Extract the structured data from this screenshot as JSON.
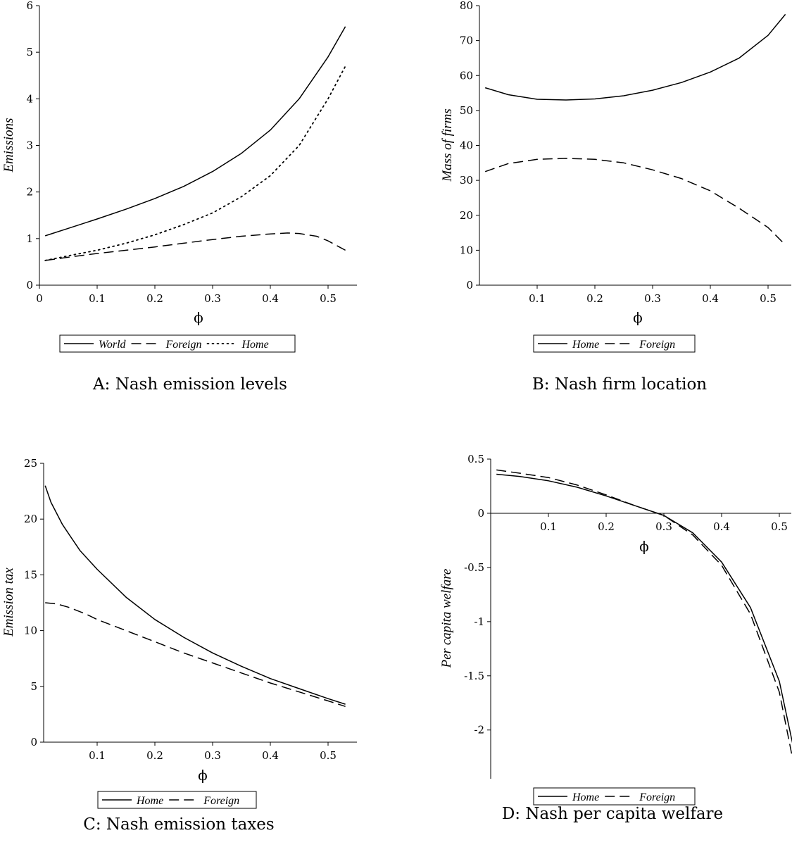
{
  "chart_data": [
    {
      "type": "line",
      "caption": "A: Nash emission levels",
      "xlabel": "ϕ",
      "ylabel": "Emissions",
      "xlim": [
        0,
        0.55
      ],
      "ylim": [
        0,
        6
      ],
      "xticks": [
        0,
        0.1,
        0.2,
        0.3,
        0.4,
        0.5
      ],
      "xtick_labels": [
        "0",
        "0.1",
        "0.2",
        "0.3",
        "0.4",
        "0.5"
      ],
      "yticks": [
        0,
        1,
        2,
        3,
        4,
        5,
        6
      ],
      "ytick_labels": [
        "0",
        "1",
        "2",
        "3",
        "4",
        "5",
        "6"
      ],
      "series": [
        {
          "name": "World",
          "style": "solid",
          "x": [
            0.01,
            0.05,
            0.1,
            0.15,
            0.2,
            0.25,
            0.3,
            0.35,
            0.4,
            0.45,
            0.5,
            0.53
          ],
          "y": [
            1.06,
            1.22,
            1.42,
            1.63,
            1.86,
            2.12,
            2.44,
            2.83,
            3.33,
            4.0,
            4.9,
            5.55
          ]
        },
        {
          "name": "Foreign",
          "style": "dashed",
          "x": [
            0.01,
            0.05,
            0.1,
            0.15,
            0.2,
            0.25,
            0.3,
            0.35,
            0.4,
            0.43,
            0.45,
            0.48,
            0.5,
            0.53
          ],
          "y": [
            0.53,
            0.6,
            0.68,
            0.75,
            0.82,
            0.9,
            0.98,
            1.05,
            1.1,
            1.12,
            1.11,
            1.05,
            0.95,
            0.75
          ]
        },
        {
          "name": "Home",
          "style": "dotted",
          "x": [
            0.01,
            0.05,
            0.1,
            0.15,
            0.2,
            0.25,
            0.3,
            0.35,
            0.4,
            0.45,
            0.5,
            0.53
          ],
          "y": [
            0.53,
            0.63,
            0.75,
            0.9,
            1.08,
            1.3,
            1.55,
            1.9,
            2.35,
            3.0,
            4.0,
            4.7
          ]
        }
      ],
      "legend": [
        "World",
        "Foreign",
        "Home"
      ],
      "legend_position": "bottom"
    },
    {
      "type": "line",
      "caption": "B: Nash firm location",
      "xlabel": "ϕ",
      "ylabel": "Mass of firms",
      "xlim": [
        0,
        0.55
      ],
      "ylim": [
        0,
        80
      ],
      "xticks": [
        0.1,
        0.2,
        0.3,
        0.4,
        0.5
      ],
      "xtick_labels": [
        "0.1",
        "0.2",
        "0.3",
        "0.4",
        "0.5"
      ],
      "yticks": [
        0,
        10,
        20,
        30,
        40,
        50,
        60,
        70,
        80
      ],
      "ytick_labels": [
        "0",
        "10",
        "20",
        "30",
        "40",
        "50",
        "60",
        "70",
        "80"
      ],
      "series": [
        {
          "name": "Home",
          "style": "solid",
          "x": [
            0.01,
            0.05,
            0.1,
            0.15,
            0.2,
            0.25,
            0.3,
            0.35,
            0.4,
            0.45,
            0.5,
            0.53
          ],
          "y": [
            56.5,
            54.5,
            53.2,
            53.0,
            53.3,
            54.2,
            55.8,
            58.0,
            61.0,
            65.0,
            71.5,
            77.5
          ]
        },
        {
          "name": "Foreign",
          "style": "dashed",
          "x": [
            0.01,
            0.05,
            0.1,
            0.15,
            0.2,
            0.25,
            0.3,
            0.35,
            0.4,
            0.45,
            0.5,
            0.53
          ],
          "y": [
            32.5,
            34.8,
            36.0,
            36.3,
            36.0,
            35.0,
            33.0,
            30.5,
            27.0,
            22.0,
            16.5,
            11.5
          ]
        }
      ],
      "legend": [
        "Home",
        "Foreign"
      ],
      "legend_position": "bottom"
    },
    {
      "type": "line",
      "caption": "C: Nash emission taxes",
      "xlabel": "ϕ",
      "ylabel": "Emission tax",
      "xlim": [
        0,
        0.55
      ],
      "ylim": [
        0,
        25
      ],
      "xticks": [
        0.1,
        0.2,
        0.3,
        0.4,
        0.5
      ],
      "xtick_labels": [
        "0.1",
        "0.2",
        "0.3",
        "0.4",
        "0.5"
      ],
      "yticks": [
        0,
        5,
        10,
        15,
        20,
        25
      ],
      "ytick_labels": [
        "0",
        "5",
        "10",
        "15",
        "20",
        "25"
      ],
      "series": [
        {
          "name": "Home",
          "style": "solid",
          "x": [
            0.01,
            0.02,
            0.04,
            0.07,
            0.1,
            0.15,
            0.2,
            0.25,
            0.3,
            0.35,
            0.4,
            0.45,
            0.5,
            0.53
          ],
          "y": [
            23.0,
            21.5,
            19.5,
            17.2,
            15.5,
            13.0,
            11.0,
            9.4,
            8.0,
            6.8,
            5.7,
            4.8,
            3.9,
            3.4
          ]
        },
        {
          "name": "Foreign",
          "style": "dashed",
          "x": [
            0.01,
            0.03,
            0.05,
            0.08,
            0.1,
            0.15,
            0.2,
            0.25,
            0.3,
            0.35,
            0.4,
            0.45,
            0.5,
            0.53
          ],
          "y": [
            12.5,
            12.4,
            12.1,
            11.5,
            11.0,
            10.0,
            9.0,
            8.0,
            7.1,
            6.2,
            5.3,
            4.5,
            3.7,
            3.2
          ]
        }
      ],
      "legend": [
        "Home",
        "Foreign"
      ],
      "legend_position": "bottom"
    },
    {
      "type": "line",
      "caption": "D: Nash per capita welfare",
      "xlabel": "ϕ",
      "ylabel": "Per capita welfare",
      "xlim": [
        0,
        0.55
      ],
      "ylim": [
        -2.45,
        0.5
      ],
      "xticks": [
        0.1,
        0.2,
        0.3,
        0.4,
        0.5
      ],
      "xtick_labels": [
        "0.1",
        "0.2",
        "0.3",
        "0.4",
        "0.5"
      ],
      "yticks": [
        0.5,
        0,
        -0.5,
        -1,
        -1.5,
        -2
      ],
      "ytick_labels": [
        "0.5",
        "0",
        "-0.5",
        "-1",
        "-1.5",
        "-2"
      ],
      "series": [
        {
          "name": "Home",
          "style": "solid",
          "x": [
            0.01,
            0.05,
            0.1,
            0.15,
            0.2,
            0.25,
            0.3,
            0.35,
            0.4,
            0.45,
            0.5,
            0.53
          ],
          "y": [
            0.36,
            0.34,
            0.3,
            0.24,
            0.16,
            0.07,
            -0.02,
            -0.18,
            -0.45,
            -0.87,
            -1.55,
            -2.3
          ]
        },
        {
          "name": "Foreign",
          "style": "dashed",
          "x": [
            0.01,
            0.05,
            0.1,
            0.15,
            0.2,
            0.25,
            0.3,
            0.35,
            0.4,
            0.45,
            0.5,
            0.53
          ],
          "y": [
            0.4,
            0.37,
            0.33,
            0.26,
            0.17,
            0.07,
            -0.02,
            -0.2,
            -0.48,
            -0.93,
            -1.65,
            -2.45
          ]
        }
      ],
      "legend": [
        "Home",
        "Foreign"
      ],
      "legend_position": "bottom"
    }
  ]
}
